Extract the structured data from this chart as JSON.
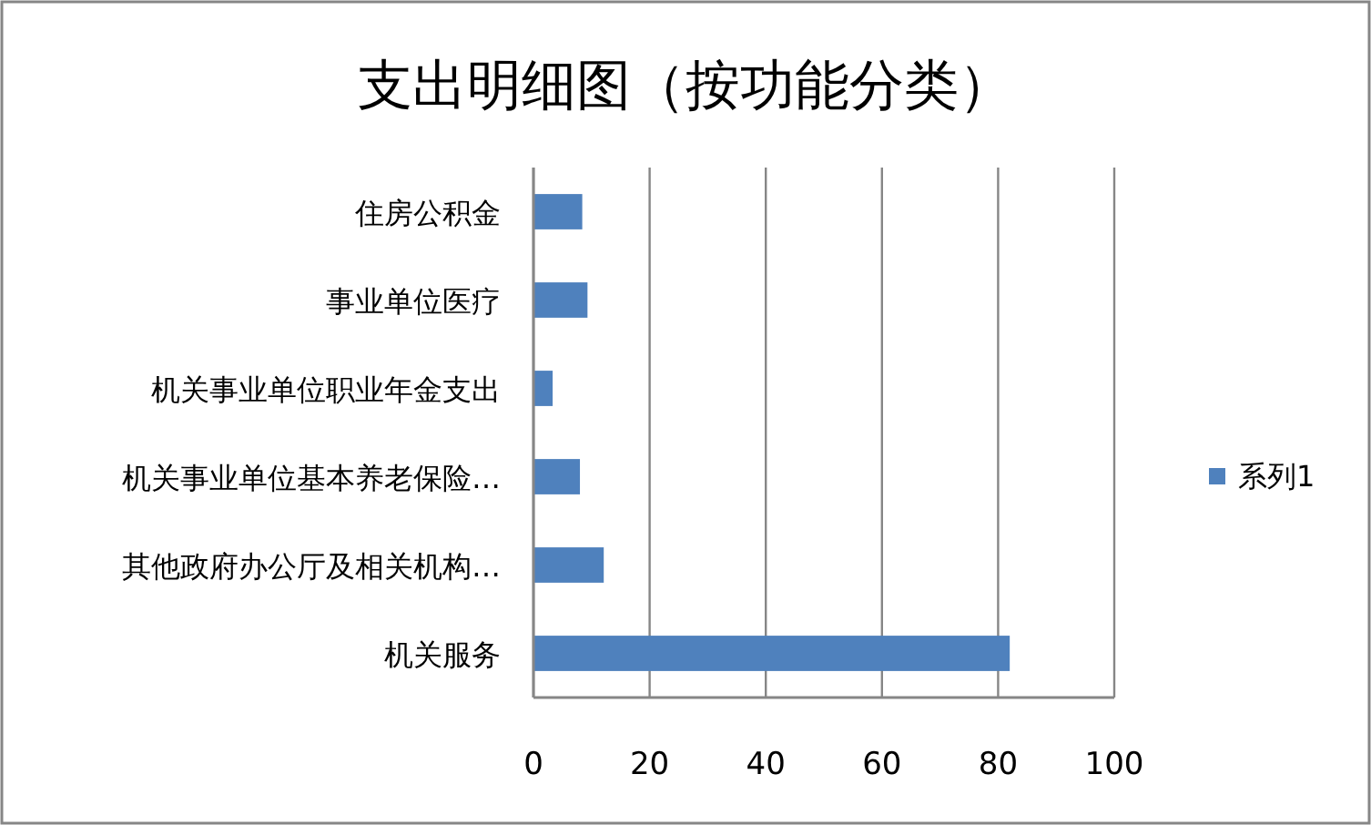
{
  "chart_data": {
    "type": "bar",
    "title": "支出明细图（按功能分类）",
    "orientation": "horizontal",
    "categories": [
      "住房公积金",
      "事业单位医疗",
      "机关事业单位职业年金支出",
      "机关事业单位基本养老保险…",
      "其他政府办公厅及相关机构…",
      "机关服务"
    ],
    "series": [
      {
        "name": "系列1",
        "color": "#4f81bd",
        "values": [
          8.4,
          9.3,
          3.3,
          8,
          12.1,
          82
        ]
      }
    ],
    "xlim": [
      0,
      100
    ],
    "xticks": [
      0,
      20,
      40,
      60,
      80,
      100
    ],
    "grid": "x",
    "legend": "right"
  }
}
